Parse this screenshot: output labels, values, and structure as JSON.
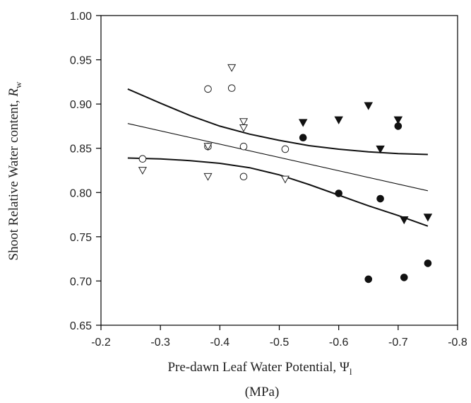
{
  "chart_data": {
    "type": "scatter",
    "title": "",
    "xlabel": "Pre-dawn Leaf Water Potential, Ψ",
    "xlabel_sub": "l",
    "xlabel_unit": "(MPa)",
    "ylabel": "Shoot Relative Water content, ",
    "ylabel_var": "R",
    "ylabel_sub": "w",
    "xlim": [
      -0.2,
      -0.8
    ],
    "ylim": [
      0.65,
      1.0
    ],
    "x_ticks": [
      -0.2,
      -0.3,
      -0.4,
      -0.5,
      -0.6,
      -0.7,
      -0.8
    ],
    "x_tick_labels": [
      "-0.2",
      "-0.3",
      "-0.4",
      "-0.5",
      "-0.6",
      "-0.7",
      "-0.8"
    ],
    "y_ticks": [
      0.65,
      0.7,
      0.75,
      0.8,
      0.85,
      0.9,
      0.95,
      1.0
    ],
    "y_tick_labels": [
      "0.65",
      "0.70",
      "0.75",
      "0.80",
      "0.85",
      "0.90",
      "0.95",
      "1.00"
    ],
    "grid": false,
    "series": [
      {
        "marker": "open-circle",
        "points": [
          [
            -0.27,
            0.838
          ],
          [
            -0.38,
            0.917
          ],
          [
            -0.38,
            0.852
          ],
          [
            -0.42,
            0.918
          ],
          [
            -0.44,
            0.852
          ],
          [
            -0.44,
            0.818
          ],
          [
            -0.51,
            0.849
          ]
        ]
      },
      {
        "marker": "open-triangle-down",
        "points": [
          [
            -0.27,
            0.825
          ],
          [
            -0.38,
            0.852
          ],
          [
            -0.38,
            0.818
          ],
          [
            -0.42,
            0.941
          ],
          [
            -0.44,
            0.88
          ],
          [
            -0.44,
            0.873
          ],
          [
            -0.51,
            0.815
          ]
        ]
      },
      {
        "marker": "filled-circle",
        "points": [
          [
            -0.54,
            0.862
          ],
          [
            -0.6,
            0.799
          ],
          [
            -0.65,
            0.702
          ],
          [
            -0.67,
            0.793
          ],
          [
            -0.7,
            0.875
          ],
          [
            -0.71,
            0.704
          ],
          [
            -0.75,
            0.72
          ]
        ]
      },
      {
        "marker": "filled-triangle-down",
        "points": [
          [
            -0.54,
            0.879
          ],
          [
            -0.6,
            0.882
          ],
          [
            -0.65,
            0.898
          ],
          [
            -0.67,
            0.849
          ],
          [
            -0.7,
            0.882
          ],
          [
            -0.71,
            0.769
          ],
          [
            -0.75,
            0.772
          ]
        ]
      }
    ],
    "lines": {
      "regression": [
        [
          -0.245,
          0.878
        ],
        [
          -0.75,
          0.802
        ]
      ],
      "upper_band": [
        [
          -0.245,
          0.917
        ],
        [
          -0.3,
          0.901
        ],
        [
          -0.35,
          0.887
        ],
        [
          -0.4,
          0.875
        ],
        [
          -0.45,
          0.866
        ],
        [
          -0.5,
          0.859
        ],
        [
          -0.55,
          0.853
        ],
        [
          -0.6,
          0.849
        ],
        [
          -0.65,
          0.846
        ],
        [
          -0.7,
          0.844
        ],
        [
          -0.75,
          0.843
        ]
      ],
      "lower_band": [
        [
          -0.245,
          0.839
        ],
        [
          -0.3,
          0.838
        ],
        [
          -0.35,
          0.836
        ],
        [
          -0.4,
          0.833
        ],
        [
          -0.45,
          0.828
        ],
        [
          -0.5,
          0.82
        ],
        [
          -0.55,
          0.809
        ],
        [
          -0.6,
          0.797
        ],
        [
          -0.65,
          0.785
        ],
        [
          -0.7,
          0.774
        ],
        [
          -0.75,
          0.762
        ]
      ]
    }
  }
}
